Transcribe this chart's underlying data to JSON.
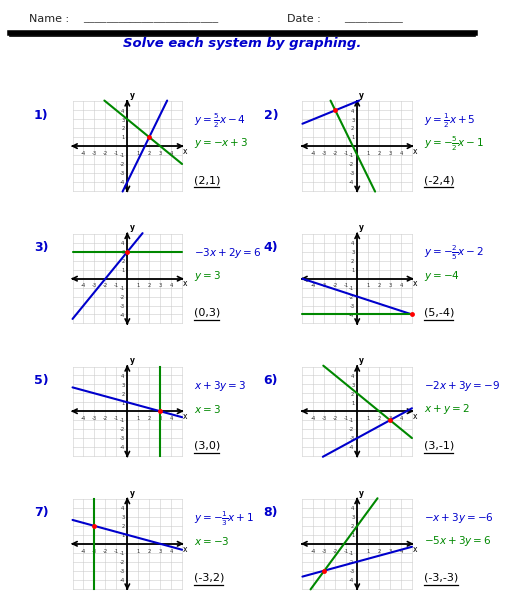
{
  "title": "Solve each system by graphing.",
  "problems": [
    {
      "num": "1)",
      "eq1_tex": "$y = \\frac{5}{2}x - 4$",
      "eq1_m": 2.5,
      "eq1_b": -4,
      "eq1_color": "#0000cc",
      "eq2_tex": "$y = -x + 3$",
      "eq2_m": -1.0,
      "eq2_b": 3,
      "eq2_color": "#008800",
      "eq2_vertical": false,
      "eq2_xval": null,
      "solution": "(2,1)",
      "ix": 2,
      "iy": 1
    },
    {
      "num": "2)",
      "eq1_tex": "$y = \\frac{1}{2}x + 5$",
      "eq1_m": 0.5,
      "eq1_b": 5,
      "eq1_color": "#0000cc",
      "eq2_tex": "$y = -\\frac{5}{2}x - 1$",
      "eq2_m": -2.5,
      "eq2_b": -1,
      "eq2_color": "#008800",
      "eq2_vertical": false,
      "eq2_xval": null,
      "solution": "(-2,4)",
      "ix": -2,
      "iy": 4
    },
    {
      "num": "3)",
      "eq1_tex": "$-3x + 2y = 6$",
      "eq1_m": 1.5,
      "eq1_b": 3,
      "eq1_color": "#0000cc",
      "eq2_tex": "$y = 3$",
      "eq2_m": 0,
      "eq2_b": 3,
      "eq2_color": "#008800",
      "eq2_vertical": false,
      "eq2_xval": null,
      "solution": "(0,3)",
      "ix": 0,
      "iy": 3
    },
    {
      "num": "4)",
      "eq1_tex": "$y = -\\frac{2}{5}x - 2$",
      "eq1_m": -0.4,
      "eq1_b": -2,
      "eq1_color": "#0000cc",
      "eq2_tex": "$y = -4$",
      "eq2_m": 0,
      "eq2_b": -4,
      "eq2_color": "#008800",
      "eq2_vertical": false,
      "eq2_xval": null,
      "solution": "(5,-4)",
      "ix": 5,
      "iy": -4
    },
    {
      "num": "5)",
      "eq1_tex": "$x + 3y = 3$",
      "eq1_m": -0.3333,
      "eq1_b": 1,
      "eq1_color": "#0000cc",
      "eq2_tex": "$x = 3$",
      "eq2_m": 0,
      "eq2_b": 0,
      "eq2_color": "#008800",
      "eq2_vertical": true,
      "eq2_xval": 3,
      "solution": "(3,0)",
      "ix": 3,
      "iy": 0
    },
    {
      "num": "6)",
      "eq1_tex": "$-2x + 3y = -9$",
      "eq1_m": 0.6667,
      "eq1_b": -3,
      "eq1_color": "#0000cc",
      "eq2_tex": "$x + y = 2$",
      "eq2_m": -1,
      "eq2_b": 2,
      "eq2_color": "#008800",
      "eq2_vertical": false,
      "eq2_xval": null,
      "solution": "(3,-1)",
      "ix": 3,
      "iy": -1
    },
    {
      "num": "7)",
      "eq1_tex": "$y = -\\frac{1}{3}x + 1$",
      "eq1_m": -0.3333,
      "eq1_b": 1,
      "eq1_color": "#0000cc",
      "eq2_tex": "$x = -3$",
      "eq2_m": 0,
      "eq2_b": 0,
      "eq2_color": "#008800",
      "eq2_vertical": true,
      "eq2_xval": -3,
      "solution": "(-3,2)",
      "ix": -3,
      "iy": 2
    },
    {
      "num": "8)",
      "eq1_tex": "$-x + 3y = -6$",
      "eq1_m": 0.3333,
      "eq1_b": -2,
      "eq1_color": "#0000cc",
      "eq2_tex": "$-5x + 3y = 6$",
      "eq2_m": 1.6667,
      "eq2_b": 2,
      "eq2_color": "#008800",
      "eq2_vertical": false,
      "eq2_xval": null,
      "solution": "(-3,-3)",
      "ix": -3,
      "iy": -3
    }
  ],
  "graph_xlim": [
    -5,
    5
  ],
  "graph_ylim": [
    -5,
    5
  ],
  "grid_color": "#cccccc",
  "axis_color": "#000000",
  "title_color": "#0000cc",
  "num_color": "#0000cc"
}
